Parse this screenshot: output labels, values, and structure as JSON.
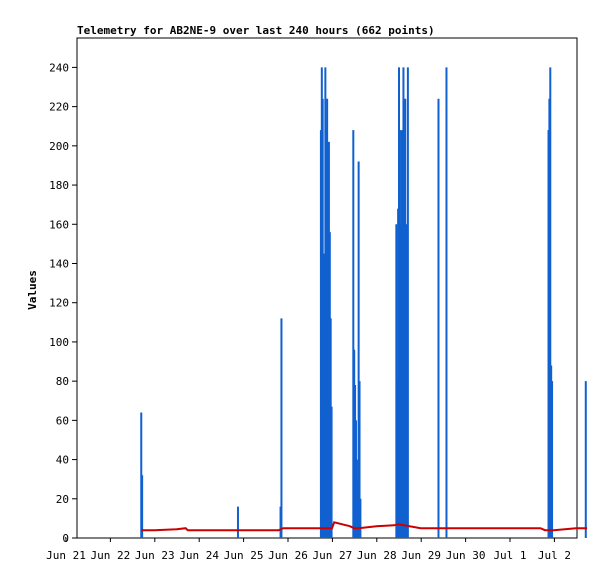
{
  "chart_data": {
    "type": "line",
    "title": "Telemetry for AB2NE-9 over last 240 hours (662 points)",
    "xlabel": "",
    "ylabel": "Values",
    "x_ticks": [
      "Jun 21",
      "Jun 22",
      "Jun 23",
      "Jun 24",
      "Jun 25",
      "Jun 26",
      "Jun 27",
      "Jun 28",
      "Jun 29",
      "Jun 30",
      "Jul 1",
      "Jul 2"
    ],
    "y_ticks": [
      0,
      20,
      40,
      60,
      80,
      100,
      120,
      140,
      160,
      180,
      200,
      220,
      240
    ],
    "xlim": [
      0,
      11
    ],
    "ylim": [
      0,
      255
    ],
    "grid": false,
    "legend": "none",
    "series": [
      {
        "color": "#1060d0",
        "style": "spikes",
        "x_unit": "days since Jun 21",
        "x": [
          0.7,
          0.72,
          2.88,
          3.84,
          3.86,
          4.75,
          4.77,
          4.79,
          4.81,
          4.83,
          4.85,
          4.87,
          4.89,
          4.91,
          4.93,
          4.95,
          4.97,
          4.99,
          5.48,
          5.5,
          5.52,
          5.54,
          5.56,
          5.58,
          5.6,
          5.62,
          5.64,
          6.45,
          6.47,
          6.49,
          6.51,
          6.53,
          6.55,
          6.57,
          6.59,
          6.61,
          6.63,
          6.65,
          6.67,
          6.69,
          6.71,
          7.4,
          7.58,
          9.88,
          9.9,
          9.92,
          9.94,
          9.96,
          10.72
        ],
        "y": [
          64,
          32,
          16,
          16,
          112,
          208,
          240,
          224,
          145,
          72,
          240,
          208,
          224,
          160,
          202,
          156,
          112,
          67,
          208,
          96,
          78,
          60,
          40,
          30,
          192,
          80,
          20,
          160,
          80,
          168,
          240,
          208,
          160,
          208,
          96,
          240,
          208,
          224,
          80,
          160,
          240,
          224,
          240,
          208,
          224,
          240,
          88,
          80,
          80
        ]
      },
      {
        "color": "#cc0000",
        "style": "line",
        "x": [
          0.7,
          1.0,
          1.5,
          1.7,
          1.75,
          2.0,
          3.0,
          3.8,
          3.9,
          4.5,
          5.0,
          5.05,
          5.4,
          5.5,
          5.6,
          6.0,
          6.4,
          6.5,
          7.0,
          8.0,
          9.0,
          9.7,
          9.8,
          10.0,
          10.5,
          10.75
        ],
        "y": [
          4,
          4,
          4.5,
          5,
          4,
          4,
          4,
          4,
          5,
          5,
          5,
          8,
          6,
          5,
          5,
          6,
          6.5,
          7,
          5,
          5,
          5,
          5,
          4,
          4,
          5,
          5
        ]
      }
    ]
  }
}
